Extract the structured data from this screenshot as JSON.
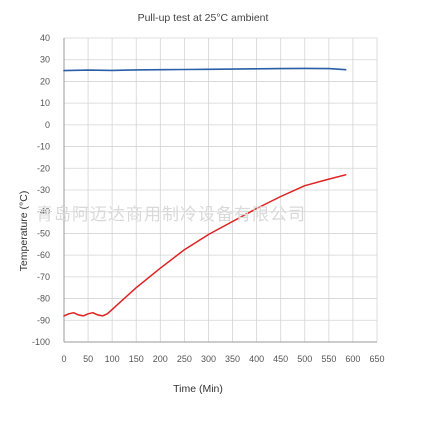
{
  "chart_data": {
    "type": "line",
    "title": "Pull-up test at 25°C ambient",
    "xlabel": "Time (Min)",
    "ylabel": "Temperature (°C)",
    "xlim": [
      0,
      650
    ],
    "ylim": [
      -100,
      40
    ],
    "xticks": [
      0,
      50,
      100,
      150,
      200,
      250,
      300,
      350,
      400,
      450,
      500,
      550,
      600,
      650
    ],
    "yticks": [
      40,
      30,
      20,
      10,
      0,
      -10,
      -20,
      -30,
      -40,
      -50,
      -60,
      -70,
      -80,
      -90,
      -100
    ],
    "grid": true,
    "series": [
      {
        "color": "#2a5fa8",
        "x": [
          0,
          50,
          100,
          150,
          200,
          250,
          300,
          350,
          400,
          450,
          500,
          550,
          585
        ],
        "y": [
          25.0,
          25.2,
          25.1,
          25.3,
          25.4,
          25.5,
          25.6,
          25.7,
          25.8,
          25.9,
          26.0,
          25.9,
          25.4
        ]
      },
      {
        "color": "#e0201f",
        "x": [
          0,
          10,
          20,
          30,
          40,
          50,
          60,
          70,
          80,
          90,
          100,
          120,
          150,
          200,
          250,
          300,
          350,
          400,
          450,
          500,
          550,
          585
        ],
        "y": [
          -88.0,
          -87.0,
          -86.5,
          -87.5,
          -88.0,
          -87.0,
          -86.5,
          -87.5,
          -88.0,
          -87.0,
          -85.0,
          -81.0,
          -75.0,
          -66.0,
          -57.5,
          -50.5,
          -44.5,
          -38.5,
          -33.0,
          -28.0,
          -25.0,
          -23.0
        ]
      }
    ]
  },
  "watermark": "青岛阿迈达商用制冷设备有限公司"
}
